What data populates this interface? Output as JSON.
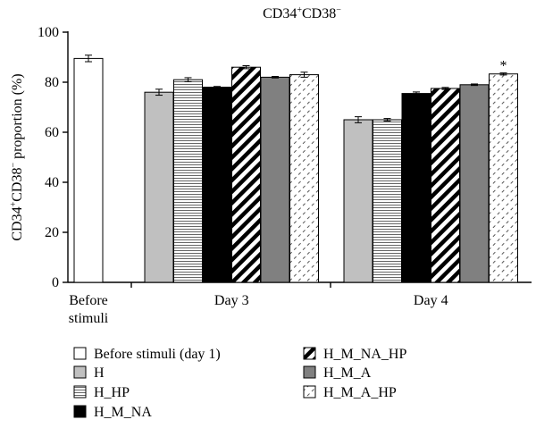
{
  "chart_data": {
    "type": "bar",
    "title": "CD34+CD38−",
    "title_parts": {
      "a": "CD34",
      "a_sup": "+",
      "b": "CD38",
      "b_sup": "−"
    },
    "ylabel_parts": {
      "a": "CD34",
      "a_sup": "+",
      "b": "CD38",
      "b_sup": "−",
      "rest": " proportion (%)"
    },
    "xlabel": "",
    "ylim": [
      0,
      100
    ],
    "yticks": [
      0,
      20,
      40,
      60,
      80,
      100
    ],
    "grid": false,
    "legend_position": "bottom",
    "categories": [
      "Before stimuli",
      "Day 3",
      "Day 4"
    ],
    "category_lines": [
      [
        "Before",
        "stimuli"
      ],
      [
        "Day 3"
      ],
      [
        "Day 4"
      ]
    ],
    "series": [
      {
        "name": "Before stimuli (day 1)",
        "fill": "white",
        "values": [
          89.5,
          null,
          null
        ],
        "errors": [
          1.3,
          null,
          null
        ]
      },
      {
        "name": "H",
        "fill": "gray",
        "values": [
          null,
          76.0,
          65.0
        ],
        "errors": [
          null,
          1.2,
          1.2
        ]
      },
      {
        "name": "H_HP",
        "fill": "hlines",
        "values": [
          null,
          81.0,
          65.0
        ],
        "errors": [
          null,
          0.8,
          0.5
        ]
      },
      {
        "name": "H_M_NA",
        "fill": "black",
        "values": [
          null,
          78.0,
          75.5
        ],
        "errors": [
          null,
          0.3,
          0.6
        ]
      },
      {
        "name": "H_M_NA_HP",
        "fill": "diagstripe",
        "values": [
          null,
          86.0,
          77.5
        ],
        "errors": [
          null,
          0.6,
          0.4
        ]
      },
      {
        "name": "H_M_A",
        "fill": "darkgray",
        "values": [
          null,
          82.0,
          79.0
        ],
        "errors": [
          null,
          0.3,
          0.3
        ]
      },
      {
        "name": "H_M_A_HP",
        "fill": "dashes",
        "values": [
          null,
          83.0,
          83.3
        ],
        "errors": [
          null,
          1.0,
          0.4
        ]
      }
    ],
    "annotations": [
      {
        "text": "*",
        "series": "H_M_A_HP",
        "category": "Day 4"
      }
    ],
    "colors": {
      "gray": "#c0c0c0",
      "darkgray": "#808080",
      "black": "#000000",
      "white": "#ffffff"
    }
  }
}
